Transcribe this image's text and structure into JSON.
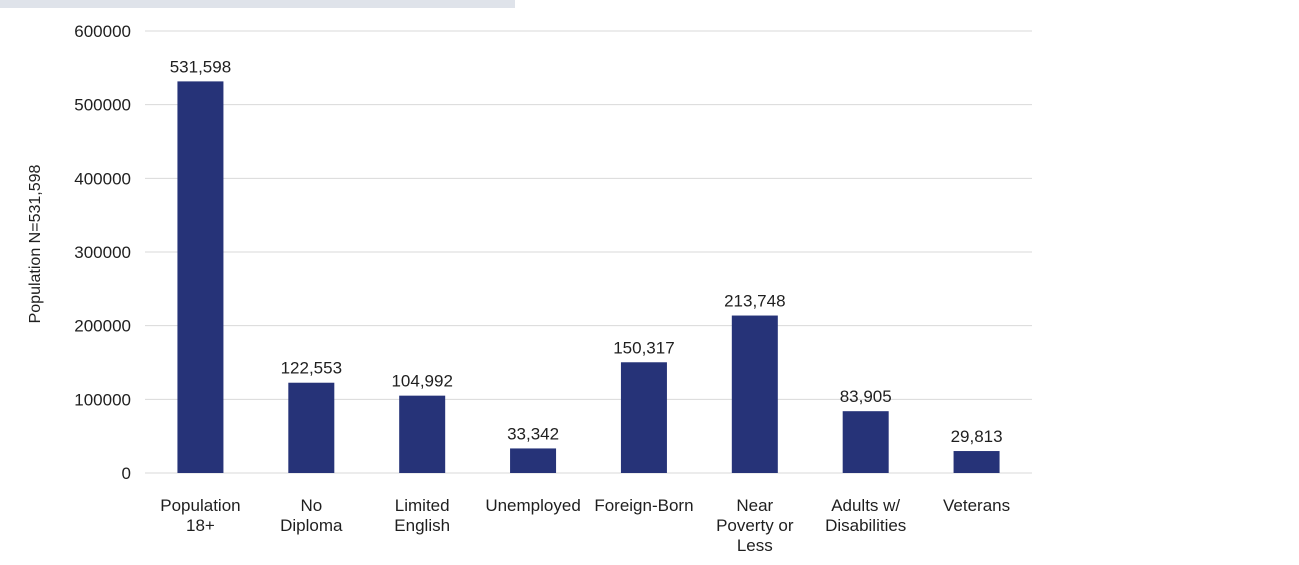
{
  "colors": {
    "bar": "#263378",
    "grid": "#d9d9d9",
    "text": "#1f1f1f"
  },
  "chart_data": {
    "type": "bar",
    "ylabel": "Population N=531,598",
    "xlabel": "",
    "ylim": [
      0,
      600000
    ],
    "yticks": [
      0,
      100000,
      200000,
      300000,
      400000,
      500000,
      600000
    ],
    "ytick_labels": [
      "0",
      "100000",
      "200000",
      "300000",
      "400000",
      "500000",
      "600000"
    ],
    "grid": true,
    "categories": [
      [
        "Population",
        "18+"
      ],
      [
        "No",
        "Diploma"
      ],
      [
        "Limited",
        "English"
      ],
      [
        "Unemployed"
      ],
      [
        "Foreign-Born"
      ],
      [
        "Near",
        "Poverty or",
        "Less"
      ],
      [
        "Adults w/",
        "Disabilities"
      ],
      [
        "Veterans"
      ]
    ],
    "values": [
      531598,
      122553,
      104992,
      33342,
      150317,
      213748,
      83905,
      29813
    ],
    "data_labels": [
      "531,598",
      "122,553",
      "104,992",
      "33,342",
      "150,317",
      "213,748",
      "83,905",
      "29,813"
    ]
  }
}
